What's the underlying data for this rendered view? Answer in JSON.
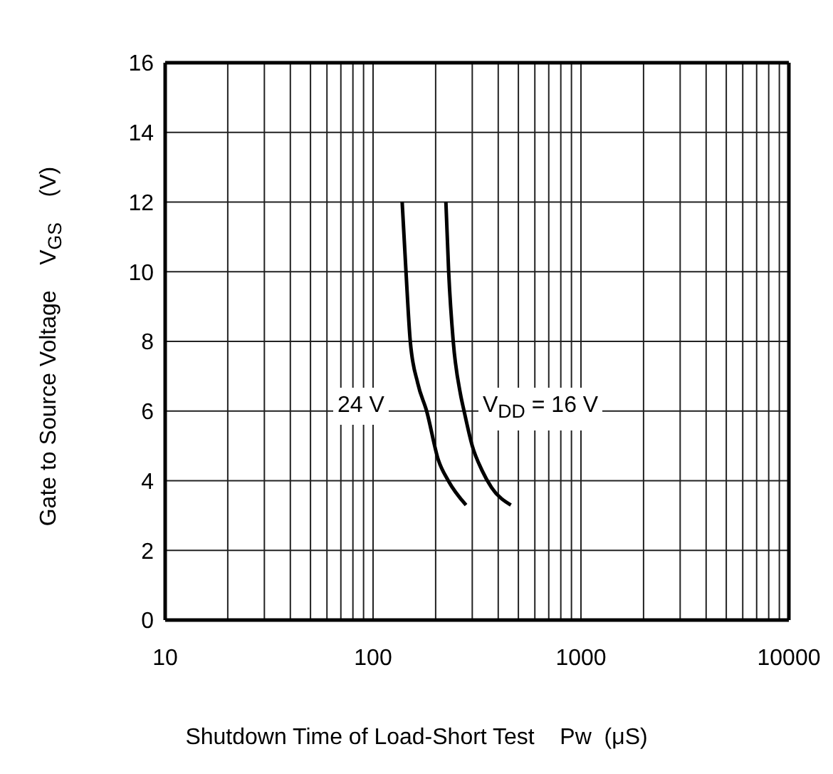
{
  "chart_data": {
    "type": "line",
    "xlabel": "Shutdown Time of Load-Short Test    Pw  (μS)",
    "ylabel": "Gate to Source Voltage    V$_{GS}$    (V)",
    "log": "x",
    "grid": true,
    "xlim": [
      10,
      10000
    ],
    "xticks": [
      10,
      {
        "value": 20,
        "label": null
      },
      {
        "value": 30,
        "label": null
      },
      {
        "value": 40,
        "label": null
      },
      {
        "value": 50,
        "label": null
      },
      {
        "value": 60,
        "label": null
      },
      {
        "value": 70,
        "label": null
      },
      {
        "value": 80,
        "label": null
      },
      {
        "value": 90,
        "label": null
      },
      100,
      {
        "value": 200,
        "label": null
      },
      {
        "value": 300,
        "label": null
      },
      {
        "value": 400,
        "label": null
      },
      {
        "value": 500,
        "label": null
      },
      {
        "value": 600,
        "label": null
      },
      {
        "value": 700,
        "label": null
      },
      {
        "value": 800,
        "label": null
      },
      {
        "value": 900,
        "label": null
      },
      1000,
      {
        "value": 2000,
        "label": null
      },
      {
        "value": 3000,
        "label": null
      },
      {
        "value": 4000,
        "label": null
      },
      {
        "value": 5000,
        "label": null
      },
      {
        "value": 6000,
        "label": null
      },
      {
        "value": 7000,
        "label": null
      },
      {
        "value": 8000,
        "label": null
      },
      {
        "value": 9000,
        "label": null
      },
      10000
    ],
    "ylim": [
      0,
      16
    ],
    "yticks": [
      0,
      2,
      4,
      6,
      8,
      10,
      12,
      14,
      16
    ],
    "series": [
      {
        "color": "#000000",
        "x": [
          138,
          144,
          151,
          164,
          181,
          206,
          230,
          280
        ],
        "values": [
          12,
          10,
          8,
          6.8,
          6,
          4.6,
          4,
          3.3
        ]
      },
      {
        "color": "#000000",
        "x": [
          224,
          231,
          243,
          263,
          274,
          300,
          334,
          372,
          460
        ],
        "values": [
          12,
          10,
          8,
          6.5,
          6,
          5,
          4.3,
          3.8,
          3.3
        ]
      }
    ],
    "annotations": [
      "24 V",
      "V$_{DD}$ = 16 V"
    ]
  }
}
